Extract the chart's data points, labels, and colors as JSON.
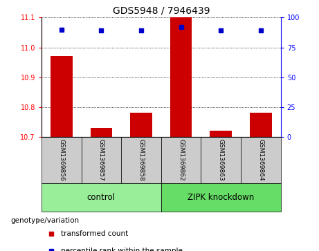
{
  "title": "GDS5948 / 7946439",
  "samples": [
    "GSM1369856",
    "GSM1369857",
    "GSM1369858",
    "GSM1369862",
    "GSM1369863",
    "GSM1369864"
  ],
  "red_values": [
    10.97,
    10.73,
    10.78,
    11.1,
    10.72,
    10.78
  ],
  "blue_values": [
    90,
    89,
    89,
    92,
    89,
    89
  ],
  "ylim_left": [
    10.7,
    11.1
  ],
  "ylim_right": [
    0,
    100
  ],
  "yticks_left": [
    10.7,
    10.8,
    10.9,
    11.0,
    11.1
  ],
  "yticks_right": [
    0,
    25,
    50,
    75,
    100
  ],
  "groups": [
    {
      "label": "control",
      "indices": [
        0,
        1,
        2
      ],
      "color": "#99ee99"
    },
    {
      "label": "ZIPK knockdown",
      "indices": [
        3,
        4,
        5
      ],
      "color": "#66dd66"
    }
  ],
  "bar_color": "#cc0000",
  "dot_color": "#0000cc",
  "bar_width": 0.55,
  "title_fontsize": 10,
  "tick_label_fontsize": 7,
  "sample_fontsize": 6.5,
  "legend_fontsize": 7.5,
  "group_label_fontsize": 8.5,
  "xlabel_left": "genotype/variation",
  "sample_box_color": "#cccccc",
  "group_colors": [
    "#99ee99",
    "#66dd66"
  ]
}
